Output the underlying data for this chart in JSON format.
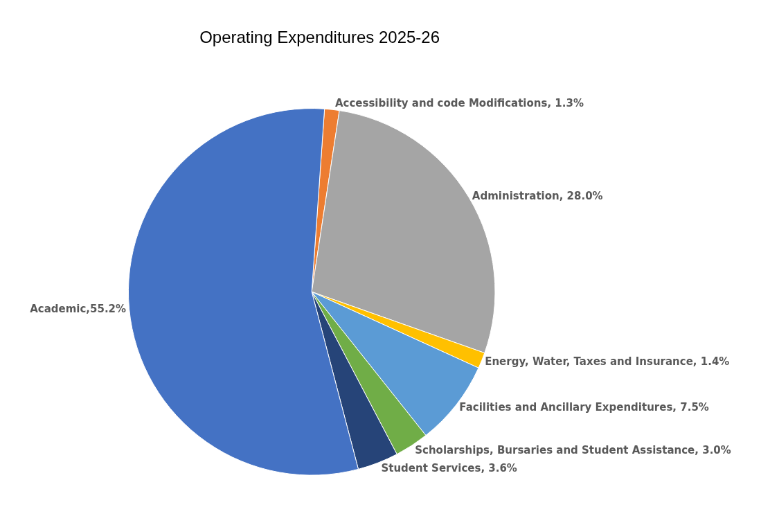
{
  "chart_data": {
    "type": "pie",
    "title": "Operating Expenditures 2025-26",
    "categories": [
      "Accessibility and code Modifications",
      "Administration",
      "Energy, Water, Taxes and Insurance",
      "Facilities and Ancillary Expenditures",
      "Scholarships, Bursaries and Student Assistance",
      "Student Services",
      "Academic"
    ],
    "values": [
      1.3,
      28.0,
      1.4,
      7.5,
      3.0,
      3.6,
      55.2
    ],
    "value_labels": [
      " 1.3%",
      " 28.0%",
      " 1.4%",
      " 7.5%",
      " 3.0%",
      " 3.6%",
      "55.2%"
    ],
    "colors": [
      "#ed7d31",
      "#a5a5a5",
      "#ffc000",
      "#5b9bd5",
      "#70ad47",
      "#264478",
      "#4472c4"
    ],
    "legend": false
  }
}
